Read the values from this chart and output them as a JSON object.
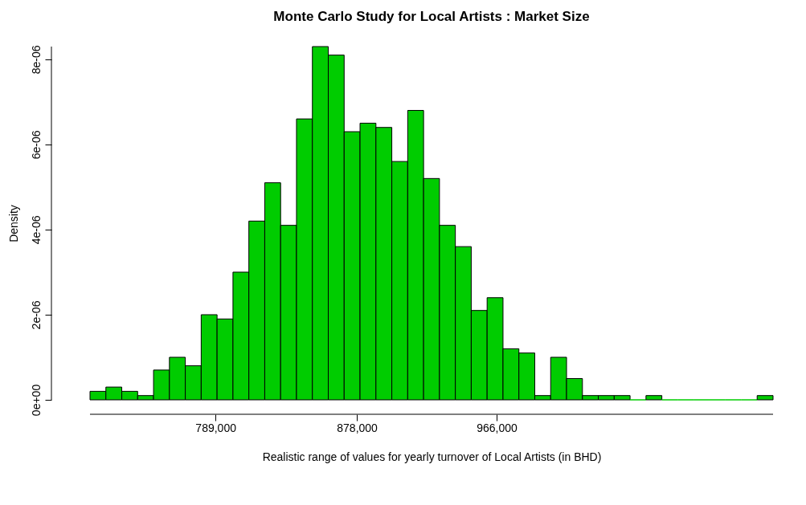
{
  "chart_data": {
    "type": "histogram",
    "title": "Monte Carlo Study for Local Artists : Market Size",
    "xlabel": "Realistic range of values for yearly turnover of  Local Artists  (in BHD)",
    "ylabel": "Density",
    "bins": [
      710000,
      720000,
      730000,
      740000,
      750000,
      760000,
      770000,
      780000,
      790000,
      800000,
      810000,
      820000,
      830000,
      840000,
      850000,
      860000,
      870000,
      880000,
      890000,
      900000,
      910000,
      920000,
      930000,
      940000,
      950000,
      960000,
      970000,
      980000,
      990000,
      1000000,
      1010000,
      1020000,
      1030000,
      1040000,
      1050000,
      1060000,
      1070000,
      1080000,
      1090000,
      1100000,
      1110000,
      1120000,
      1130000,
      1140000
    ],
    "values": [
      2e-07,
      3e-07,
      2e-07,
      1e-07,
      7e-07,
      1e-06,
      8e-07,
      2e-06,
      1.9e-06,
      3e-06,
      4.2e-06,
      5.1e-06,
      4.1e-06,
      6.6e-06,
      8.3e-06,
      8.1e-06,
      6.3e-06,
      6.5e-06,
      6.4e-06,
      5.6e-06,
      6.8e-06,
      5.2e-06,
      4.1e-06,
      3.6e-06,
      2.1e-06,
      2.4e-06,
      1.2e-06,
      1.1e-06,
      1e-07,
      1e-06,
      5e-07,
      1e-07,
      1e-07,
      1e-07,
      0,
      1e-07,
      0,
      0,
      0,
      0,
      0,
      0,
      1e-07
    ],
    "color": "#00cc00",
    "xlim": [
      710000,
      1140000
    ],
    "ylim": [
      0,
      8.3e-06
    ],
    "xticks": [
      {
        "value": 789000,
        "label": "789,000"
      },
      {
        "value": 878000,
        "label": "878,000"
      },
      {
        "value": 966000,
        "label": "966,000"
      }
    ],
    "yticks": [
      {
        "value": 0,
        "label": "0e+00"
      },
      {
        "value": 2e-06,
        "label": "2e-06"
      },
      {
        "value": 4e-06,
        "label": "4e-06"
      },
      {
        "value": 6e-06,
        "label": "6e-06"
      },
      {
        "value": 8e-06,
        "label": "8e-06"
      }
    ],
    "grid": false
  }
}
